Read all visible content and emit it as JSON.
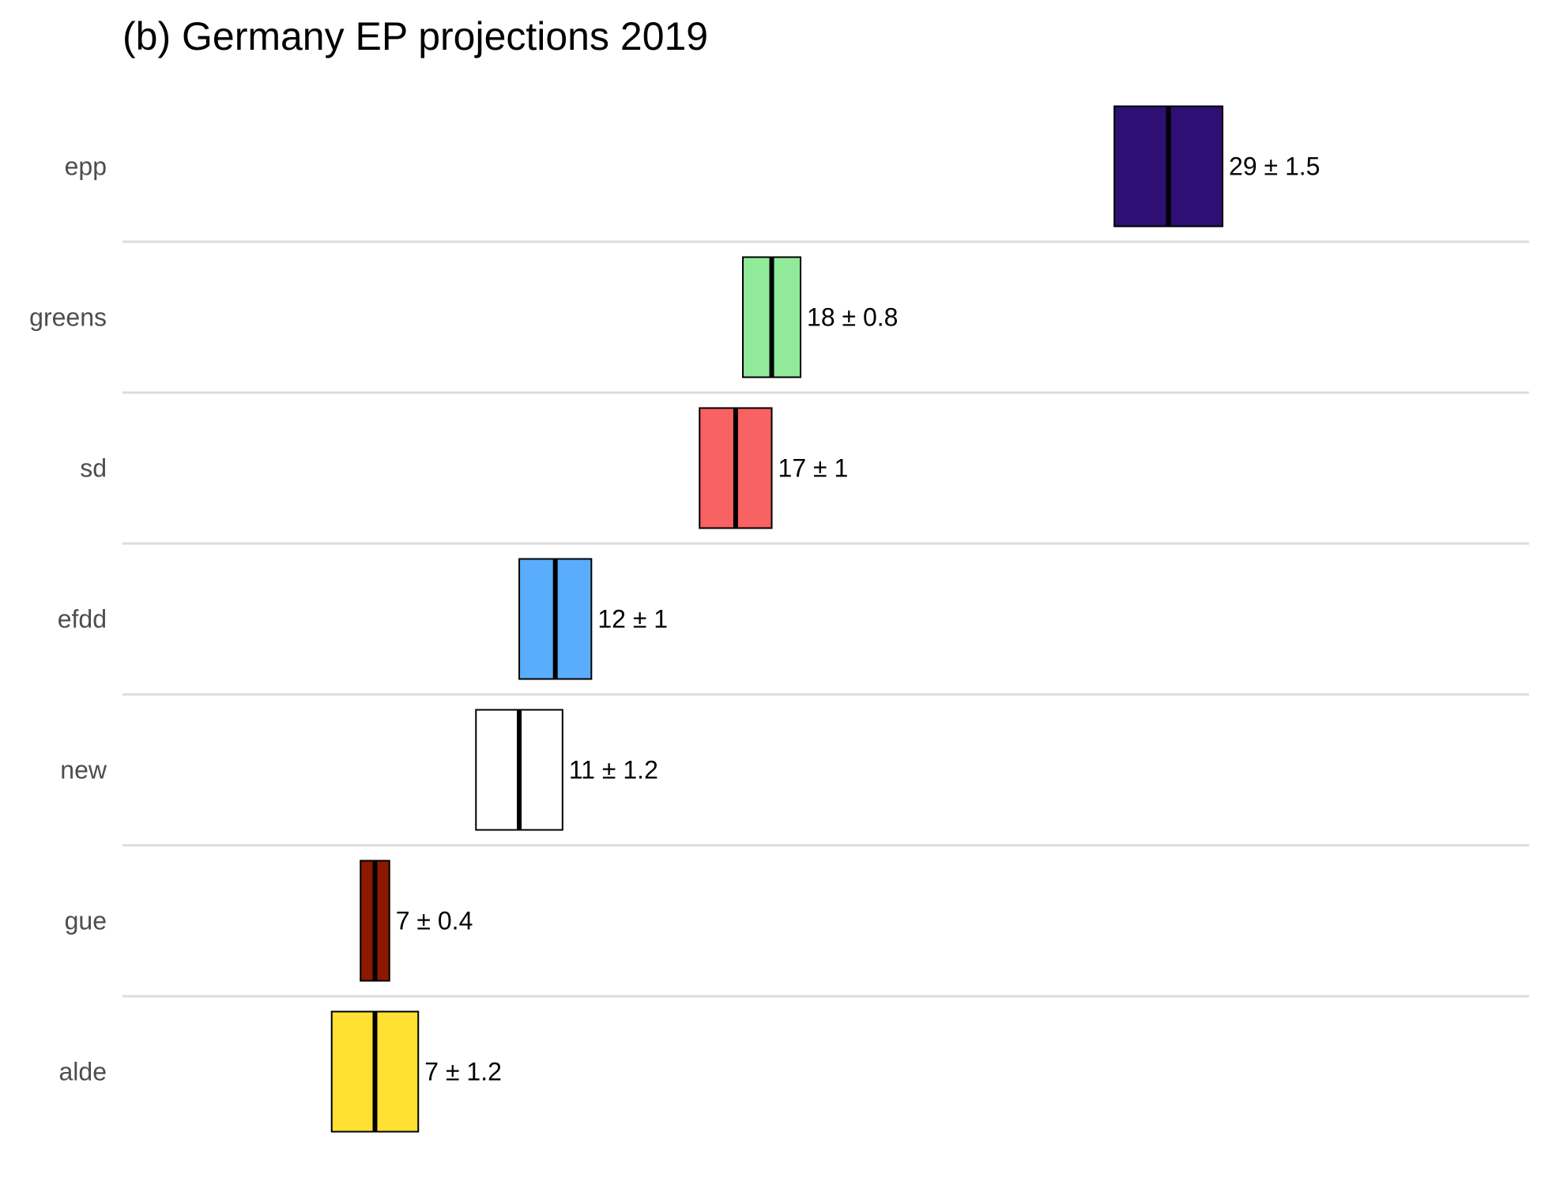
{
  "chart_data": {
    "type": "bar",
    "title": "(b) Germany EP projections 2019",
    "xlabel": "",
    "ylabel": "",
    "xlim": [
      0,
      39
    ],
    "grid": "horizontal separators between rows",
    "legend": "none",
    "categories": [
      "epp",
      "greens",
      "sd",
      "efdd",
      "new",
      "gue",
      "alde"
    ],
    "series": [
      {
        "values": [
          29,
          18,
          17,
          12,
          11,
          7,
          7
        ],
        "errors": [
          1.5,
          0.8,
          1,
          1,
          1.2,
          0.4,
          1.2
        ],
        "value_labels": [
          "29 ± 1.5",
          "18 ± 0.8",
          "17 ± 1",
          "12 ± 1",
          "11 ± 1.2",
          "7 ± 0.4",
          "7 ± 1.2"
        ],
        "colors": [
          "#2e0f73",
          "#90ea9a",
          "#f86262",
          "#5aacfc",
          "#ffffff",
          "#8b1a00",
          "#ffe033"
        ]
      }
    ]
  }
}
